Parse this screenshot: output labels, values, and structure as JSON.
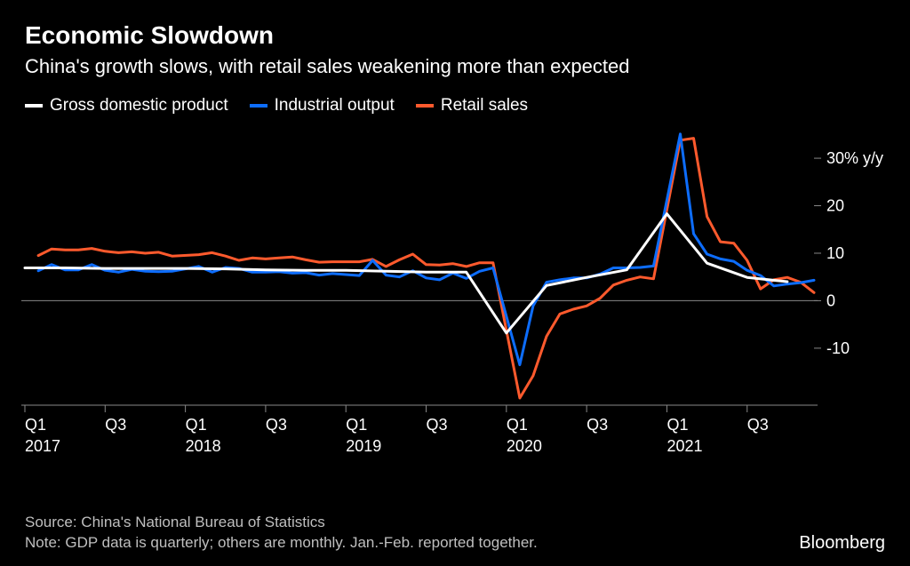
{
  "header": {
    "title": "Economic Slowdown",
    "subtitle": "China's growth slows, with retail sales weakening more than expected"
  },
  "legend": [
    {
      "label": "Gross domestic product",
      "color": "#ffffff"
    },
    {
      "label": "Industrial output",
      "color": "#0d6dfd"
    },
    {
      "label": "Retail sales",
      "color": "#ff5a2d"
    }
  ],
  "chart": {
    "type": "line",
    "background_color": "#000000",
    "grid_color": "#888888",
    "text_color": "#ffffff",
    "line_width": 3,
    "xlim": [
      0,
      59
    ],
    "ylim": [
      -22,
      36
    ],
    "y_axis_unit": " y/y",
    "y_ticks": [
      {
        "pos": 30,
        "label": "30%"
      },
      {
        "pos": 20,
        "label": "20"
      },
      {
        "pos": 10,
        "label": "10"
      },
      {
        "pos": 0,
        "label": "0"
      },
      {
        "pos": -10,
        "label": "-10"
      }
    ],
    "x_ticks": [
      {
        "pos": 0,
        "label": "Q1",
        "year": "2017"
      },
      {
        "pos": 6,
        "label": "Q3"
      },
      {
        "pos": 12,
        "label": "Q1",
        "year": "2018"
      },
      {
        "pos": 18,
        "label": "Q3"
      },
      {
        "pos": 24,
        "label": "Q1",
        "year": "2019"
      },
      {
        "pos": 30,
        "label": "Q3"
      },
      {
        "pos": 36,
        "label": "Q1",
        "year": "2020"
      },
      {
        "pos": 42,
        "label": "Q3"
      },
      {
        "pos": 48,
        "label": "Q1",
        "year": "2021"
      },
      {
        "pos": 54,
        "label": "Q3"
      }
    ],
    "series": [
      {
        "name": "Gross domestic product",
        "color": "#ffffff",
        "frequency": "quarterly",
        "points": [
          {
            "x": 0,
            "y": 6.9
          },
          {
            "x": 3,
            "y": 6.9
          },
          {
            "x": 6,
            "y": 6.8
          },
          {
            "x": 9,
            "y": 6.8
          },
          {
            "x": 12,
            "y": 6.8
          },
          {
            "x": 15,
            "y": 6.7
          },
          {
            "x": 18,
            "y": 6.5
          },
          {
            "x": 21,
            "y": 6.4
          },
          {
            "x": 24,
            "y": 6.4
          },
          {
            "x": 27,
            "y": 6.2
          },
          {
            "x": 30,
            "y": 6.0
          },
          {
            "x": 33,
            "y": 6.0
          },
          {
            "x": 36,
            "y": -6.8
          },
          {
            "x": 39,
            "y": 3.2
          },
          {
            "x": 42,
            "y": 4.9
          },
          {
            "x": 45,
            "y": 6.5
          },
          {
            "x": 48,
            "y": 18.3
          },
          {
            "x": 51,
            "y": 7.9
          },
          {
            "x": 54,
            "y": 4.9
          },
          {
            "x": 57,
            "y": 4.0
          }
        ]
      },
      {
        "name": "Industrial output",
        "color": "#0d6dfd",
        "frequency": "monthly",
        "points": [
          {
            "x": 1,
            "y": 6.3
          },
          {
            "x": 2,
            "y": 7.6
          },
          {
            "x": 3,
            "y": 6.5
          },
          {
            "x": 4,
            "y": 6.5
          },
          {
            "x": 5,
            "y": 7.6
          },
          {
            "x": 6,
            "y": 6.4
          },
          {
            "x": 7,
            "y": 6.0
          },
          {
            "x": 8,
            "y": 6.6
          },
          {
            "x": 9,
            "y": 6.2
          },
          {
            "x": 10,
            "y": 6.1
          },
          {
            "x": 11,
            "y": 6.2
          },
          {
            "x": 13,
            "y": 7.2
          },
          {
            "x": 14,
            "y": 6.0
          },
          {
            "x": 15,
            "y": 7.0
          },
          {
            "x": 16,
            "y": 6.8
          },
          {
            "x": 17,
            "y": 6.0
          },
          {
            "x": 18,
            "y": 6.0
          },
          {
            "x": 19,
            "y": 6.1
          },
          {
            "x": 20,
            "y": 5.8
          },
          {
            "x": 21,
            "y": 5.9
          },
          {
            "x": 22,
            "y": 5.4
          },
          {
            "x": 23,
            "y": 5.7
          },
          {
            "x": 25,
            "y": 5.3
          },
          {
            "x": 26,
            "y": 8.5
          },
          {
            "x": 27,
            "y": 5.4
          },
          {
            "x": 28,
            "y": 5.0
          },
          {
            "x": 29,
            "y": 6.3
          },
          {
            "x": 30,
            "y": 4.8
          },
          {
            "x": 31,
            "y": 4.4
          },
          {
            "x": 32,
            "y": 5.8
          },
          {
            "x": 33,
            "y": 4.7
          },
          {
            "x": 34,
            "y": 6.2
          },
          {
            "x": 35,
            "y": 6.9
          },
          {
            "x": 37,
            "y": -13.5
          },
          {
            "x": 38,
            "y": -1.1
          },
          {
            "x": 39,
            "y": 3.9
          },
          {
            "x": 40,
            "y": 4.4
          },
          {
            "x": 41,
            "y": 4.8
          },
          {
            "x": 42,
            "y": 4.8
          },
          {
            "x": 43,
            "y": 5.6
          },
          {
            "x": 44,
            "y": 6.9
          },
          {
            "x": 45,
            "y": 6.9
          },
          {
            "x": 46,
            "y": 7.0
          },
          {
            "x": 47,
            "y": 7.3
          },
          {
            "x": 49,
            "y": 35.1
          },
          {
            "x": 50,
            "y": 14.1
          },
          {
            "x": 51,
            "y": 9.8
          },
          {
            "x": 52,
            "y": 8.8
          },
          {
            "x": 53,
            "y": 8.3
          },
          {
            "x": 54,
            "y": 6.4
          },
          {
            "x": 55,
            "y": 5.3
          },
          {
            "x": 56,
            "y": 3.1
          },
          {
            "x": 57,
            "y": 3.5
          },
          {
            "x": 58,
            "y": 3.8
          },
          {
            "x": 59,
            "y": 4.3
          }
        ]
      },
      {
        "name": "Retail sales",
        "color": "#ff5a2d",
        "frequency": "monthly",
        "points": [
          {
            "x": 1,
            "y": 9.5
          },
          {
            "x": 2,
            "y": 10.9
          },
          {
            "x": 3,
            "y": 10.7
          },
          {
            "x": 4,
            "y": 10.7
          },
          {
            "x": 5,
            "y": 11.0
          },
          {
            "x": 6,
            "y": 10.4
          },
          {
            "x": 7,
            "y": 10.1
          },
          {
            "x": 8,
            "y": 10.3
          },
          {
            "x": 9,
            "y": 10.0
          },
          {
            "x": 10,
            "y": 10.2
          },
          {
            "x": 11,
            "y": 9.4
          },
          {
            "x": 13,
            "y": 9.7
          },
          {
            "x": 14,
            "y": 10.1
          },
          {
            "x": 15,
            "y": 9.4
          },
          {
            "x": 16,
            "y": 8.5
          },
          {
            "x": 17,
            "y": 9.0
          },
          {
            "x": 18,
            "y": 8.8
          },
          {
            "x": 19,
            "y": 9.0
          },
          {
            "x": 20,
            "y": 9.2
          },
          {
            "x": 21,
            "y": 8.6
          },
          {
            "x": 22,
            "y": 8.1
          },
          {
            "x": 23,
            "y": 8.2
          },
          {
            "x": 25,
            "y": 8.2
          },
          {
            "x": 26,
            "y": 8.7
          },
          {
            "x": 27,
            "y": 7.2
          },
          {
            "x": 28,
            "y": 8.6
          },
          {
            "x": 29,
            "y": 9.8
          },
          {
            "x": 30,
            "y": 7.6
          },
          {
            "x": 31,
            "y": 7.5
          },
          {
            "x": 32,
            "y": 7.8
          },
          {
            "x": 33,
            "y": 7.2
          },
          {
            "x": 34,
            "y": 8.0
          },
          {
            "x": 35,
            "y": 8.0
          },
          {
            "x": 37,
            "y": -20.5
          },
          {
            "x": 38,
            "y": -15.8
          },
          {
            "x": 39,
            "y": -7.5
          },
          {
            "x": 40,
            "y": -2.8
          },
          {
            "x": 41,
            "y": -1.8
          },
          {
            "x": 42,
            "y": -1.1
          },
          {
            "x": 43,
            "y": 0.5
          },
          {
            "x": 44,
            "y": 3.3
          },
          {
            "x": 45,
            "y": 4.3
          },
          {
            "x": 46,
            "y": 5.0
          },
          {
            "x": 47,
            "y": 4.6
          },
          {
            "x": 49,
            "y": 33.8
          },
          {
            "x": 50,
            "y": 34.2
          },
          {
            "x": 51,
            "y": 17.7
          },
          {
            "x": 52,
            "y": 12.4
          },
          {
            "x": 53,
            "y": 12.1
          },
          {
            "x": 54,
            "y": 8.5
          },
          {
            "x": 55,
            "y": 2.5
          },
          {
            "x": 56,
            "y": 4.4
          },
          {
            "x": 57,
            "y": 4.9
          },
          {
            "x": 58,
            "y": 3.9
          },
          {
            "x": 59,
            "y": 1.7
          }
        ]
      }
    ]
  },
  "footer": {
    "source": "Source: China's National Bureau of Statistics",
    "note": "Note: GDP data is quarterly; others are monthly. Jan.-Feb. reported together.",
    "brand": "Bloomberg"
  }
}
